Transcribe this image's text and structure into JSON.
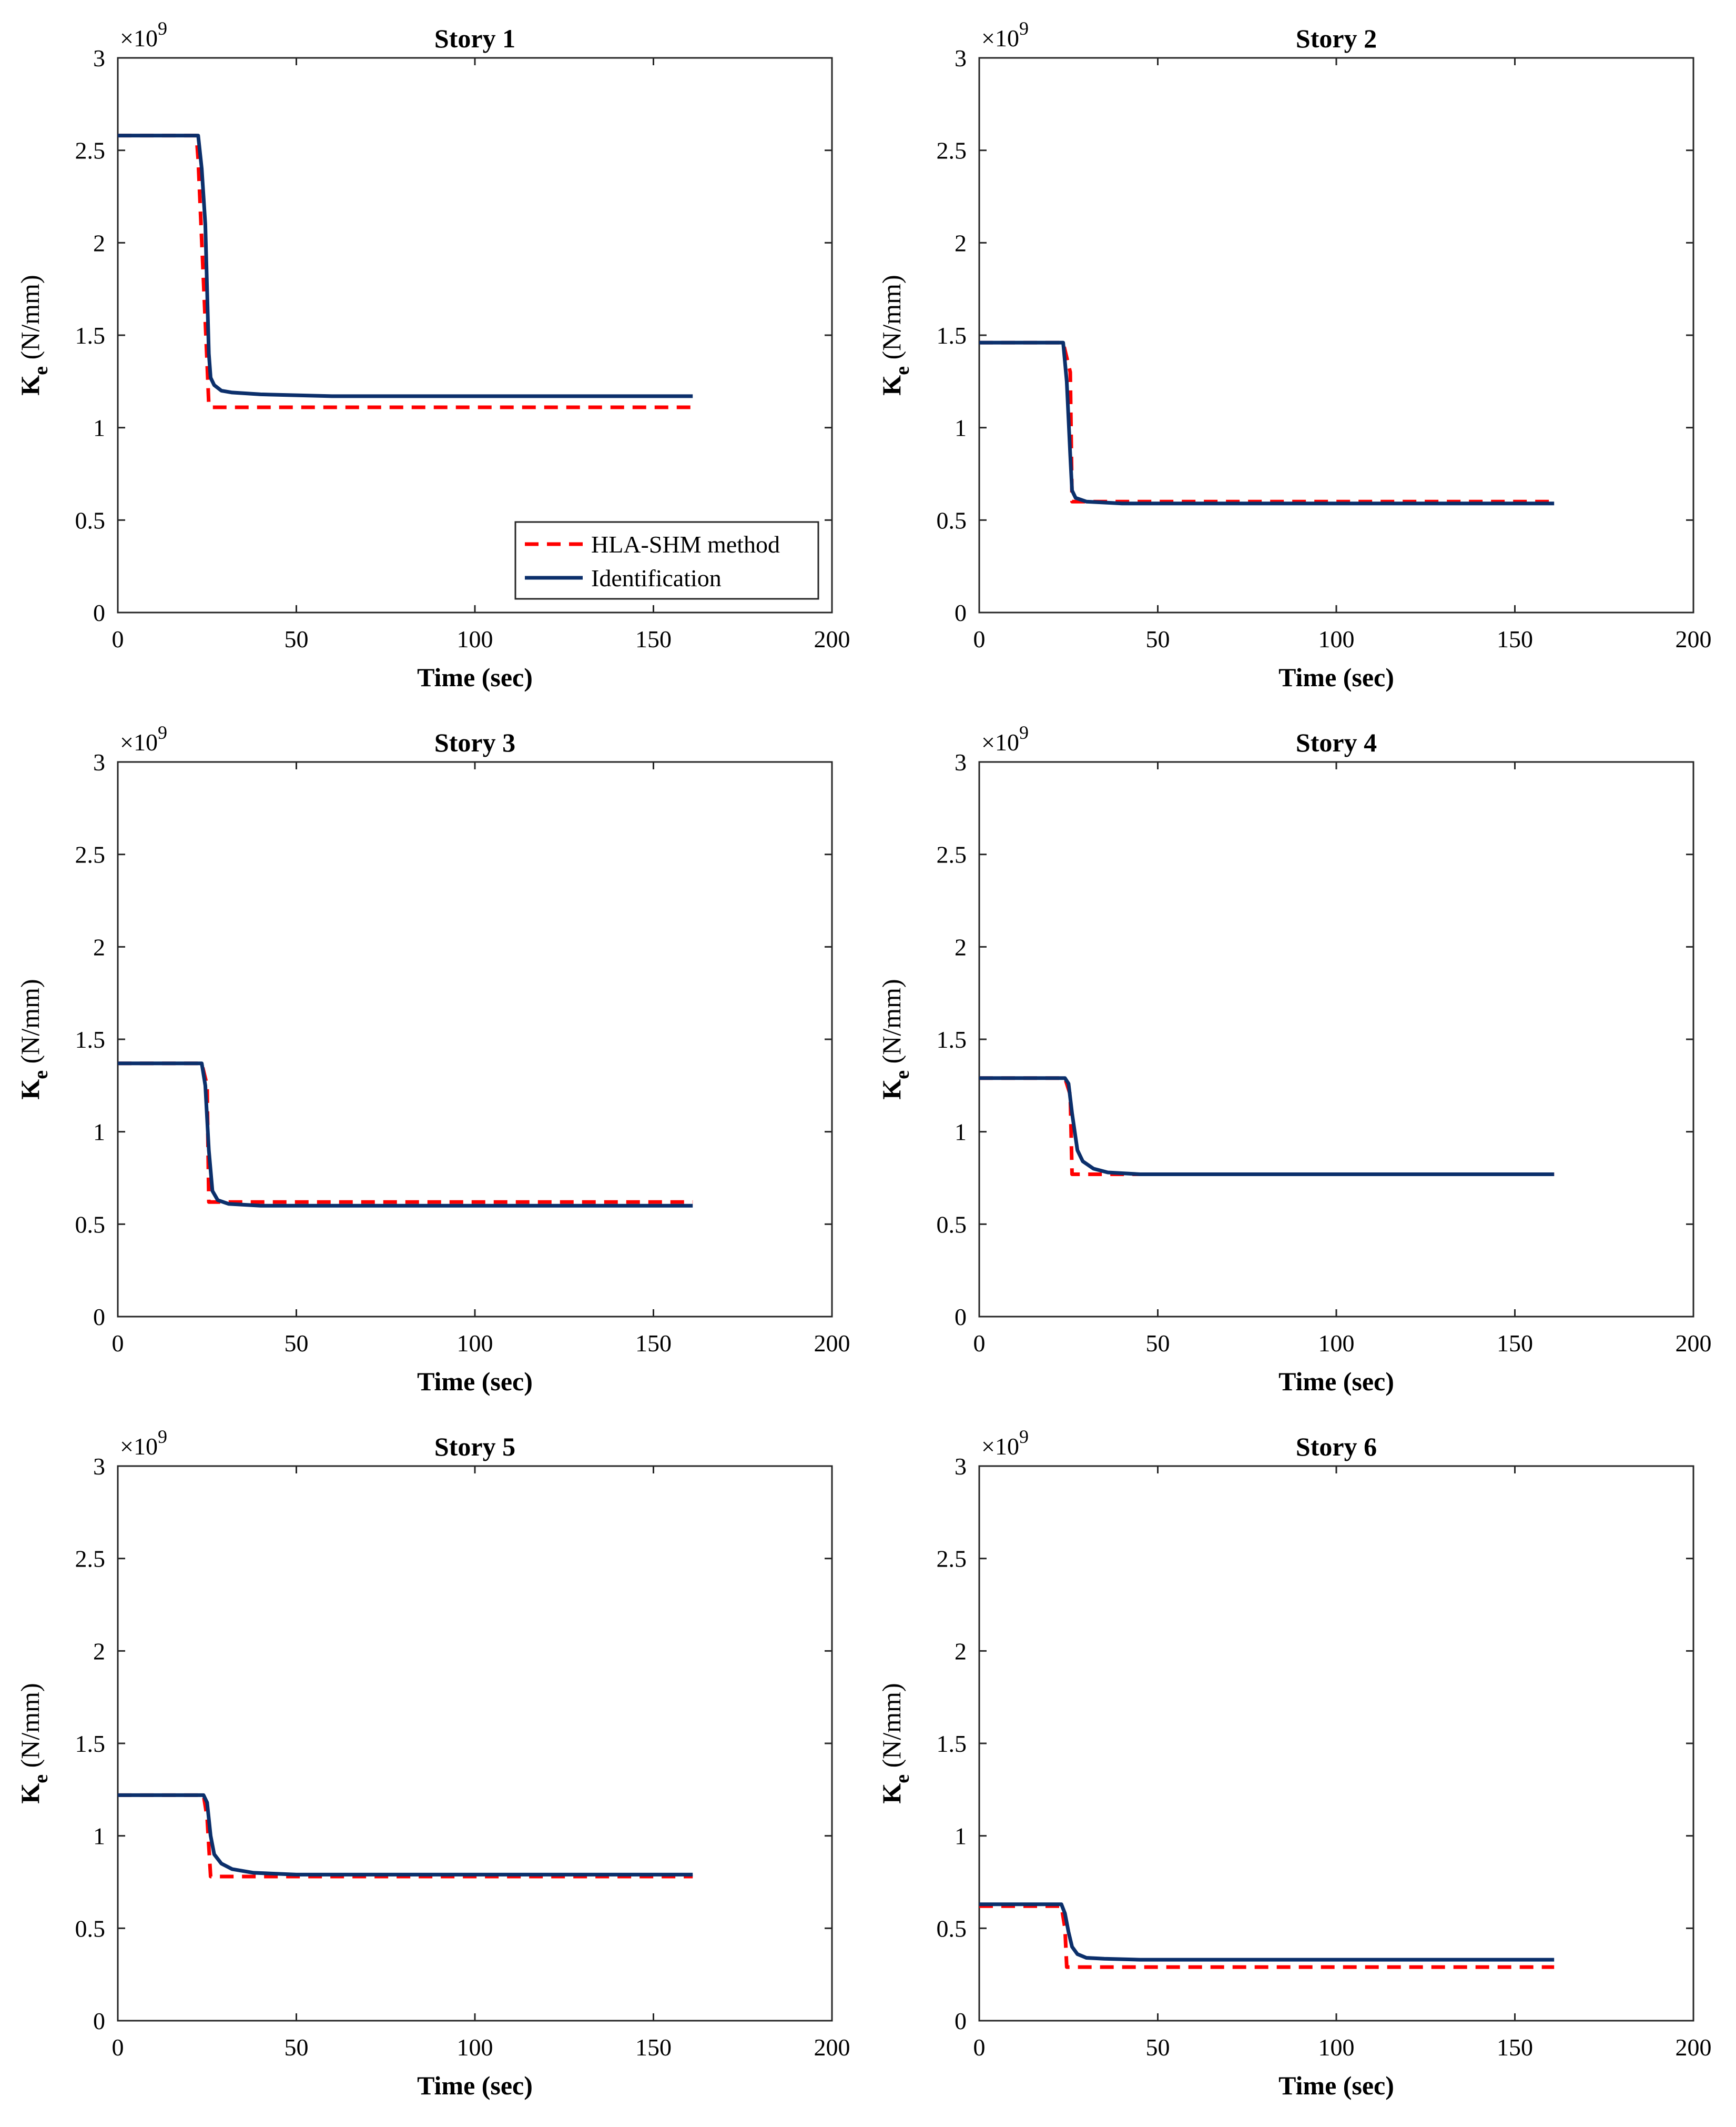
{
  "colors": {
    "hla": "#ff0000",
    "ident": "#0b2f6b",
    "axis": "#262626"
  },
  "shared": {
    "x_ticks": [
      "0",
      "50",
      "100",
      "150",
      "200"
    ],
    "y_ticks": [
      "0",
      "0.5",
      "1",
      "1.5",
      "2",
      "2.5",
      "3"
    ],
    "exponent_base": "×10",
    "exponent_power": "9",
    "ylabel_main": "K",
    "ylabel_sub": "e",
    "ylabel_unit": "(N/mm)",
    "xlabel": "Time (sec)"
  },
  "legend": {
    "hla": "HLA-SHM method",
    "ident": "Identification"
  },
  "chart_data": [
    {
      "type": "line",
      "title": "Story 1",
      "xlabel": "Time (sec)",
      "ylabel": "Ke (N/mm)",
      "xlim": [
        0,
        200
      ],
      "ylim": [
        0,
        3
      ],
      "y_scale": "×10^9",
      "legend_position": "bottom-right",
      "series": [
        {
          "name": "HLA-SHM method",
          "style": "dashed",
          "x": [
            0,
            22,
            22.5,
            25,
            25.5,
            26,
            161
          ],
          "y": [
            2.58,
            2.58,
            2.45,
            1.35,
            1.12,
            1.11,
            1.11
          ]
        },
        {
          "name": "Identification",
          "style": "solid",
          "x": [
            0,
            22.5,
            23.5,
            24.5,
            25.5,
            26,
            27,
            29,
            32,
            40,
            60,
            100,
            161
          ],
          "y": [
            2.58,
            2.58,
            2.4,
            2.1,
            1.4,
            1.27,
            1.23,
            1.2,
            1.19,
            1.18,
            1.17,
            1.17,
            1.17
          ]
        }
      ]
    },
    {
      "type": "line",
      "title": "Story 2",
      "xlabel": "Time (sec)",
      "ylabel": "Ke (N/mm)",
      "xlim": [
        0,
        200
      ],
      "ylim": [
        0,
        3
      ],
      "y_scale": "×10^9",
      "series": [
        {
          "name": "HLA-SHM method",
          "style": "dashed",
          "x": [
            0,
            23.5,
            25.5,
            26,
            161
          ],
          "y": [
            1.46,
            1.46,
            1.3,
            0.6,
            0.6
          ]
        },
        {
          "name": "Identification",
          "style": "solid",
          "x": [
            0,
            23.5,
            24.5,
            25.5,
            26,
            27,
            30,
            40,
            80,
            161
          ],
          "y": [
            1.46,
            1.46,
            1.25,
            0.85,
            0.66,
            0.62,
            0.6,
            0.59,
            0.59,
            0.59
          ]
        }
      ]
    },
    {
      "type": "line",
      "title": "Story 3",
      "xlabel": "Time (sec)",
      "ylabel": "Ke (N/mm)",
      "xlim": [
        0,
        200
      ],
      "ylim": [
        0,
        3
      ],
      "y_scale": "×10^9",
      "series": [
        {
          "name": "HLA-SHM method",
          "style": "dashed",
          "x": [
            0,
            23.5,
            25,
            25.5,
            26,
            161
          ],
          "y": [
            1.37,
            1.37,
            1.25,
            0.62,
            0.62,
            0.62
          ]
        },
        {
          "name": "Identification",
          "style": "solid",
          "x": [
            0,
            23.5,
            24.5,
            25.5,
            26.5,
            28,
            31,
            40,
            60,
            161
          ],
          "y": [
            1.37,
            1.37,
            1.25,
            0.9,
            0.68,
            0.63,
            0.61,
            0.6,
            0.6,
            0.6
          ]
        }
      ]
    },
    {
      "type": "line",
      "title": "Story 4",
      "xlabel": "Time (sec)",
      "ylabel": "Ke (N/mm)",
      "xlim": [
        0,
        200
      ],
      "ylim": [
        0,
        3
      ],
      "y_scale": "×10^9",
      "series": [
        {
          "name": "HLA-SHM method",
          "style": "dashed",
          "x": [
            0,
            24,
            25.5,
            26,
            40,
            161
          ],
          "y": [
            1.29,
            1.29,
            1.2,
            0.77,
            0.77,
            0.77
          ]
        },
        {
          "name": "Identification",
          "style": "solid",
          "x": [
            0,
            24,
            25,
            26,
            27.5,
            29,
            32,
            36,
            45,
            161
          ],
          "y": [
            1.29,
            1.29,
            1.26,
            1.1,
            0.9,
            0.84,
            0.8,
            0.78,
            0.77,
            0.77
          ]
        }
      ]
    },
    {
      "type": "line",
      "title": "Story 5",
      "xlabel": "Time (sec)",
      "ylabel": "Ke (N/mm)",
      "xlim": [
        0,
        200
      ],
      "ylim": [
        0,
        3
      ],
      "y_scale": "×10^9",
      "series": [
        {
          "name": "HLA-SHM method",
          "style": "dashed",
          "x": [
            0,
            24,
            25,
            26,
            161
          ],
          "y": [
            1.22,
            1.22,
            1.1,
            0.78,
            0.78
          ]
        },
        {
          "name": "Identification",
          "style": "solid",
          "x": [
            0,
            24,
            25,
            26,
            27,
            29,
            32,
            38,
            50,
            161
          ],
          "y": [
            1.22,
            1.22,
            1.18,
            1.0,
            0.9,
            0.85,
            0.82,
            0.8,
            0.79,
            0.79
          ]
        }
      ]
    },
    {
      "type": "line",
      "title": "Story 6",
      "xlabel": "Time (sec)",
      "ylabel": "Ke (N/mm)",
      "xlim": [
        0,
        200
      ],
      "ylim": [
        0,
        3
      ],
      "y_scale": "×10^9",
      "series": [
        {
          "name": "HLA-SHM method",
          "style": "dashed",
          "x": [
            0,
            23,
            24,
            24.5,
            161
          ],
          "y": [
            0.62,
            0.62,
            0.5,
            0.29,
            0.29
          ]
        },
        {
          "name": "Identification",
          "style": "solid",
          "x": [
            0,
            23,
            24,
            25,
            26,
            27.5,
            30,
            35,
            45,
            161
          ],
          "y": [
            0.63,
            0.63,
            0.58,
            0.48,
            0.4,
            0.36,
            0.34,
            0.335,
            0.33,
            0.33
          ]
        }
      ]
    }
  ]
}
